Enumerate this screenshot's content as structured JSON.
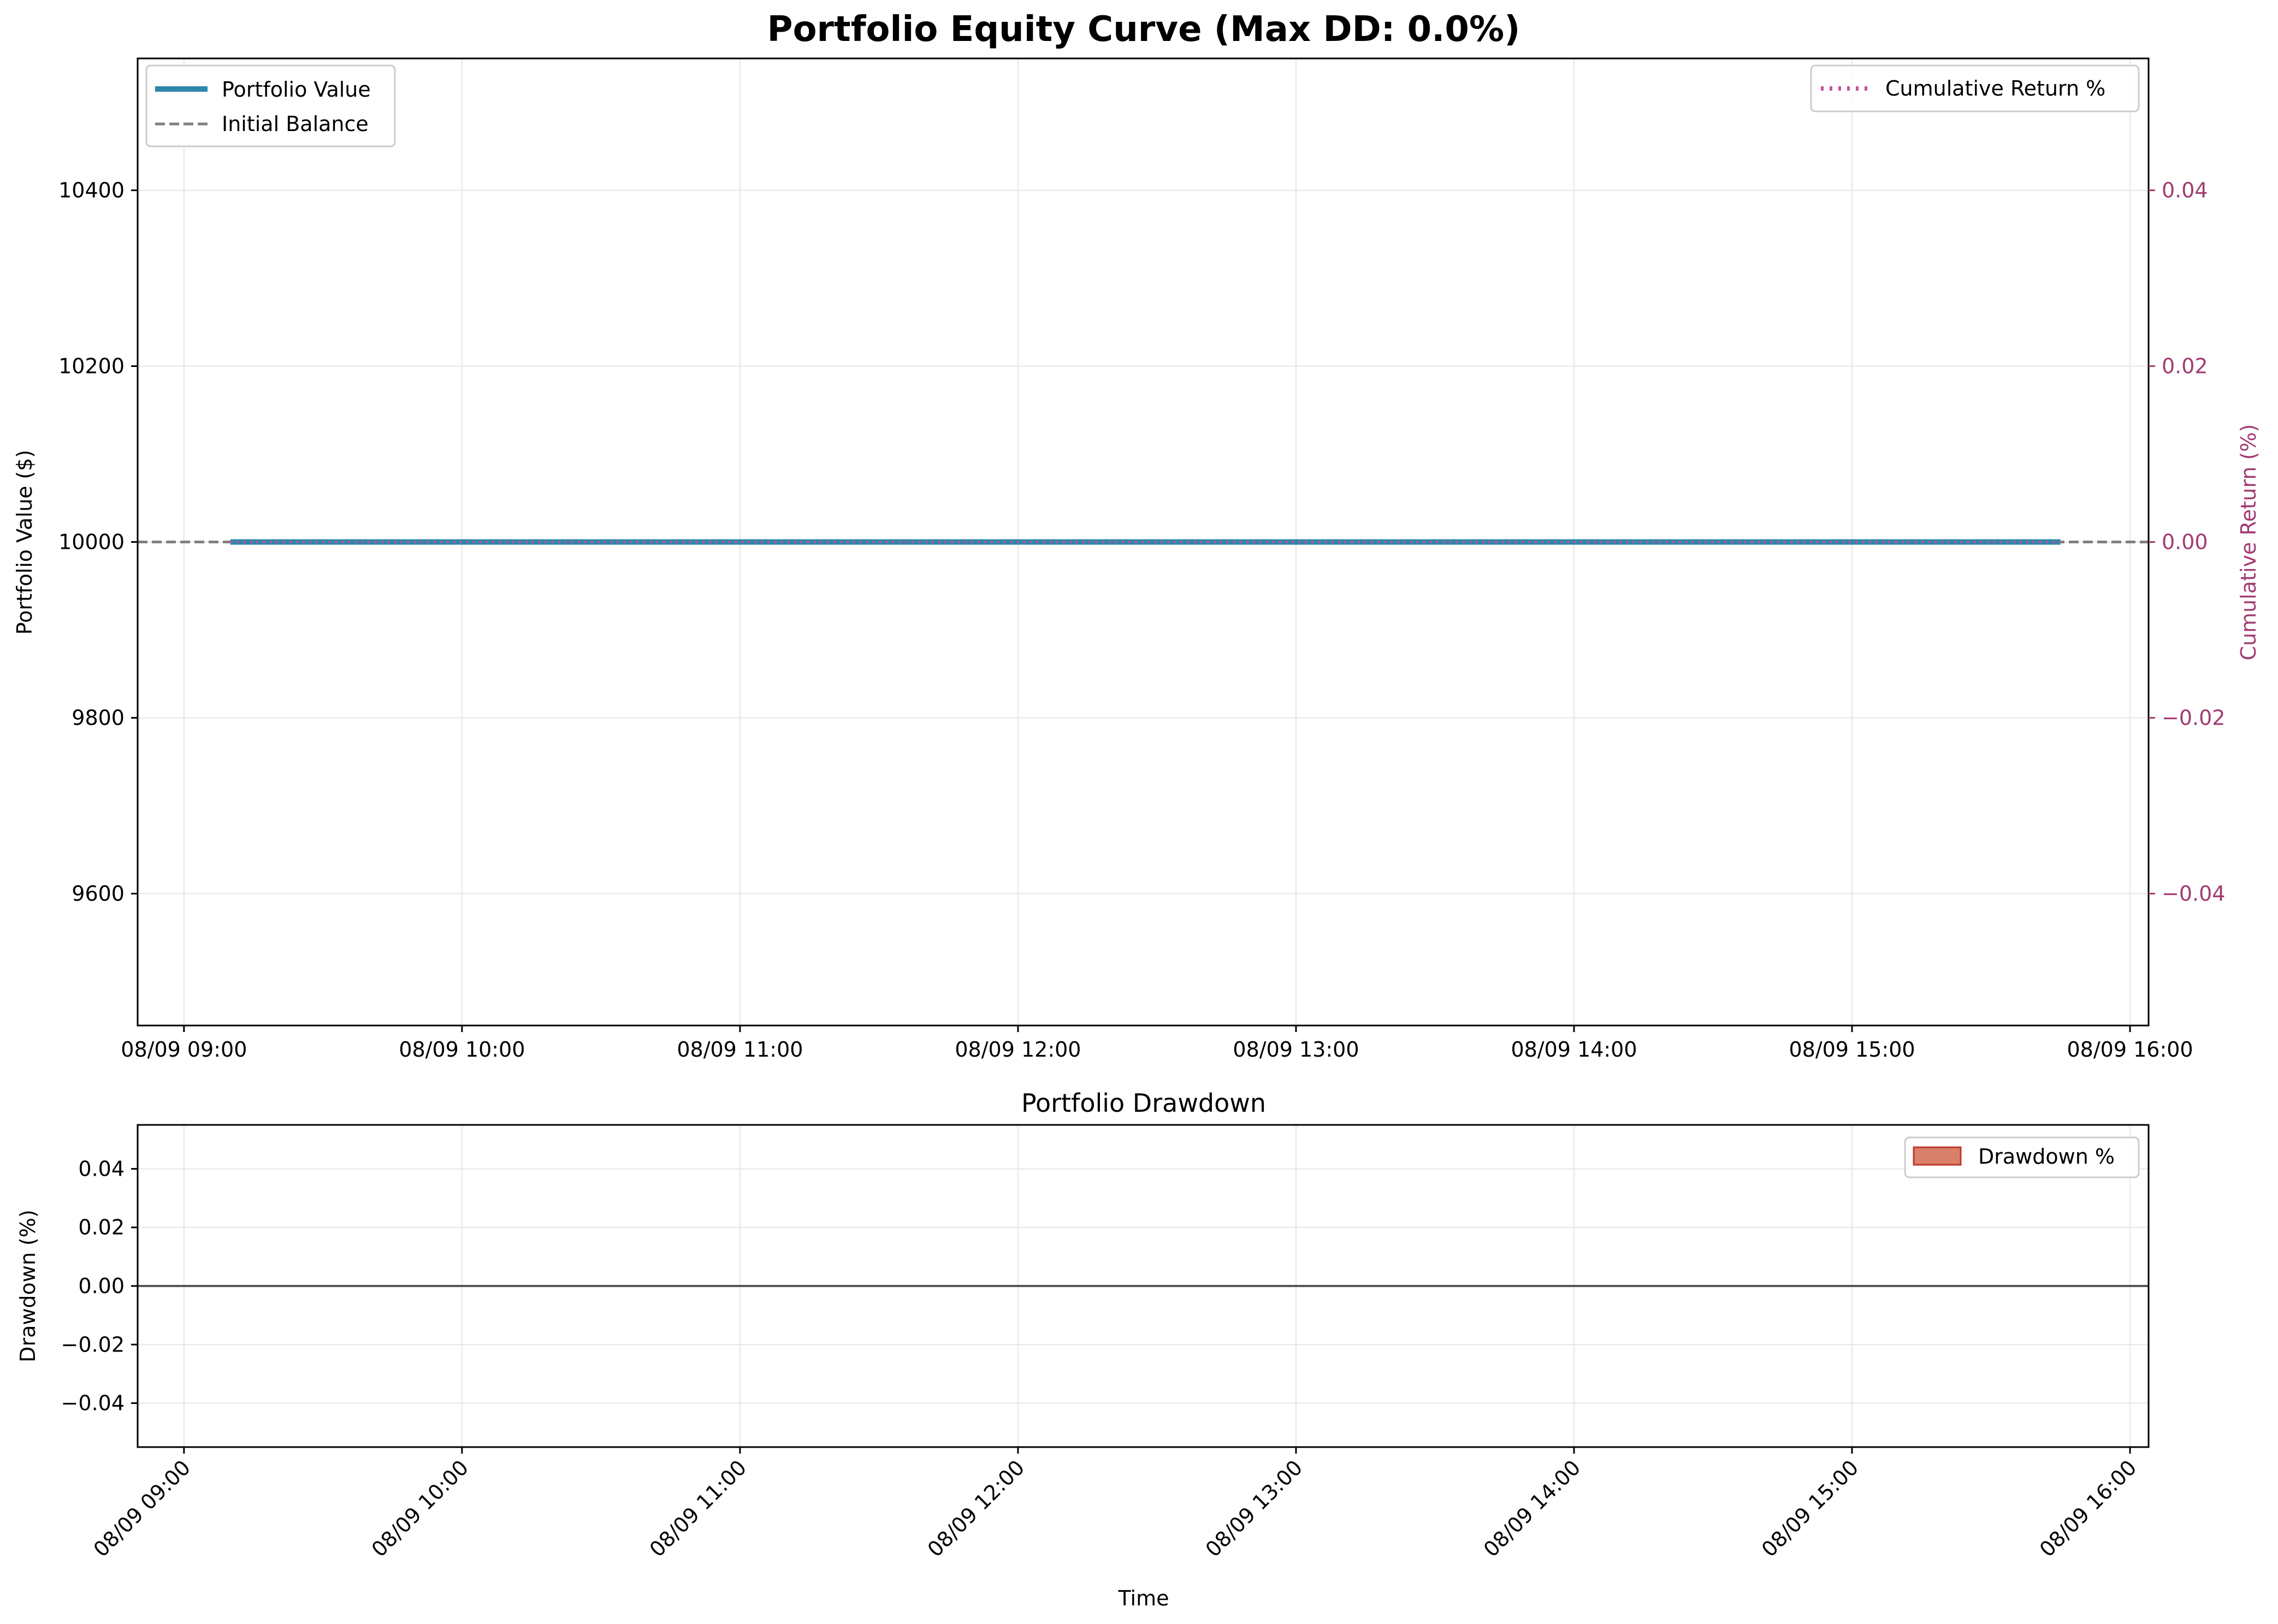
{
  "chart_data": [
    {
      "type": "line",
      "title": "Portfolio Equity Curve (Max DD: 0.0%)",
      "xlabel": "",
      "ylabel": "Portfolio Value ($)",
      "ylabel_right": "Cumulative Return (%)",
      "x_ticks": [
        "08/09 09:00",
        "08/09 10:00",
        "08/09 11:00",
        "08/09 12:00",
        "08/09 13:00",
        "08/09 14:00",
        "08/09 15:00",
        "08/09 16:00"
      ],
      "y_ticks": [
        9600,
        9800,
        10000,
        10200,
        10400
      ],
      "y_ticks_right": [
        "−0.04",
        "−0.02",
        "0.00",
        "0.02",
        "0.04"
      ],
      "xlim": [
        "08/09 08:50",
        "08/09 16:04"
      ],
      "ylim": [
        9450,
        10550
      ],
      "ylim_right": [
        -0.055,
        0.055
      ],
      "grid": true,
      "legend": "upper-left and upper-right",
      "series": [
        {
          "name": "Portfolio Value",
          "axis": "left",
          "style": "solid",
          "color": "#2e86ab",
          "x": [
            "08/09 09:10",
            "08/09 15:45"
          ],
          "values": [
            10000,
            10000
          ]
        },
        {
          "name": "Initial Balance",
          "axis": "left",
          "style": "dashed",
          "color": "#808080",
          "x": [
            "08/09 08:50",
            "08/09 16:04"
          ],
          "values": [
            10000,
            10000
          ]
        },
        {
          "name": "Cumulative Return %",
          "axis": "right",
          "style": "dotted",
          "color": "#c8509b",
          "x": [
            "08/09 09:10",
            "08/09 15:45"
          ],
          "values": [
            0.0,
            0.0
          ]
        }
      ]
    },
    {
      "type": "area",
      "title": "Portfolio Drawdown",
      "xlabel": "Time",
      "ylabel": "Drawdown (%)",
      "x_ticks": [
        "08/09 09:00",
        "08/09 10:00",
        "08/09 11:00",
        "08/09 12:00",
        "08/09 13:00",
        "08/09 14:00",
        "08/09 15:00",
        "08/09 16:00"
      ],
      "y_ticks": [
        "−0.04",
        "−0.02",
        "0.00",
        "0.02",
        "0.04"
      ],
      "xlim": [
        "08/09 08:50",
        "08/09 16:04"
      ],
      "ylim": [
        -0.055,
        0.055
      ],
      "grid": true,
      "legend": "upper-right",
      "series": [
        {
          "name": "Drawdown %",
          "color": "#d9806a",
          "edge_color": "#c0392b",
          "x": [
            "08/09 09:10",
            "08/09 15:45"
          ],
          "values": [
            0.0,
            0.0
          ]
        }
      ]
    }
  ],
  "colors": {
    "equity_line": "#2e86ab",
    "initial_balance": "#808080",
    "cumulative_return": "#c8509b",
    "right_axis_text": "#a23b72",
    "drawdown_fill": "#d9806a",
    "drawdown_edge": "#c0392b",
    "zero_line": "#555555",
    "grid": "#e6e6e6"
  }
}
